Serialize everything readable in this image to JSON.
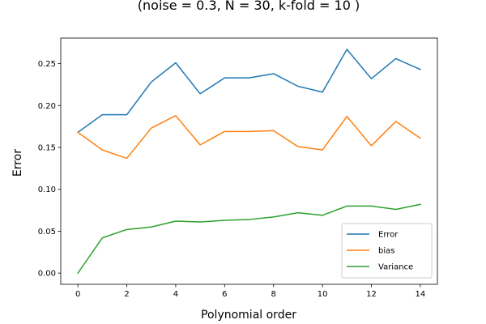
{
  "chart_data": {
    "type": "line",
    "title": "(noise = 0.3, N = 30, k-fold = 10 )",
    "xlabel": "Polynomial order",
    "ylabel": "Error",
    "xlim": [
      -0.7,
      14.7
    ],
    "ylim": [
      -0.0134,
      0.2805
    ],
    "x": [
      0,
      1,
      2,
      3,
      4,
      5,
      6,
      7,
      8,
      9,
      10,
      11,
      12,
      13,
      14
    ],
    "xticks": [
      0,
      2,
      4,
      6,
      8,
      10,
      12,
      14
    ],
    "yticks": [
      0.0,
      0.05,
      0.1,
      0.15,
      0.2,
      0.25
    ],
    "ytick_labels": [
      "0.00",
      "0.05",
      "0.10",
      "0.15",
      "0.20",
      "0.25"
    ],
    "grid": false,
    "legend_position": "lower-right",
    "series": [
      {
        "name": "Error",
        "color": "#1f77b4",
        "values": [
          0.168,
          0.189,
          0.189,
          0.228,
          0.251,
          0.214,
          0.233,
          0.233,
          0.238,
          0.223,
          0.216,
          0.267,
          0.232,
          0.256,
          0.243
        ]
      },
      {
        "name": "bias",
        "color": "#ff7f0e",
        "values": [
          0.168,
          0.147,
          0.137,
          0.173,
          0.188,
          0.153,
          0.169,
          0.169,
          0.17,
          0.151,
          0.147,
          0.187,
          0.152,
          0.181,
          0.161
        ]
      },
      {
        "name": "Variance",
        "color": "#2ca02c",
        "values": [
          0.0,
          0.042,
          0.052,
          0.055,
          0.062,
          0.061,
          0.063,
          0.064,
          0.067,
          0.072,
          0.069,
          0.08,
          0.08,
          0.076,
          0.082
        ]
      }
    ]
  }
}
